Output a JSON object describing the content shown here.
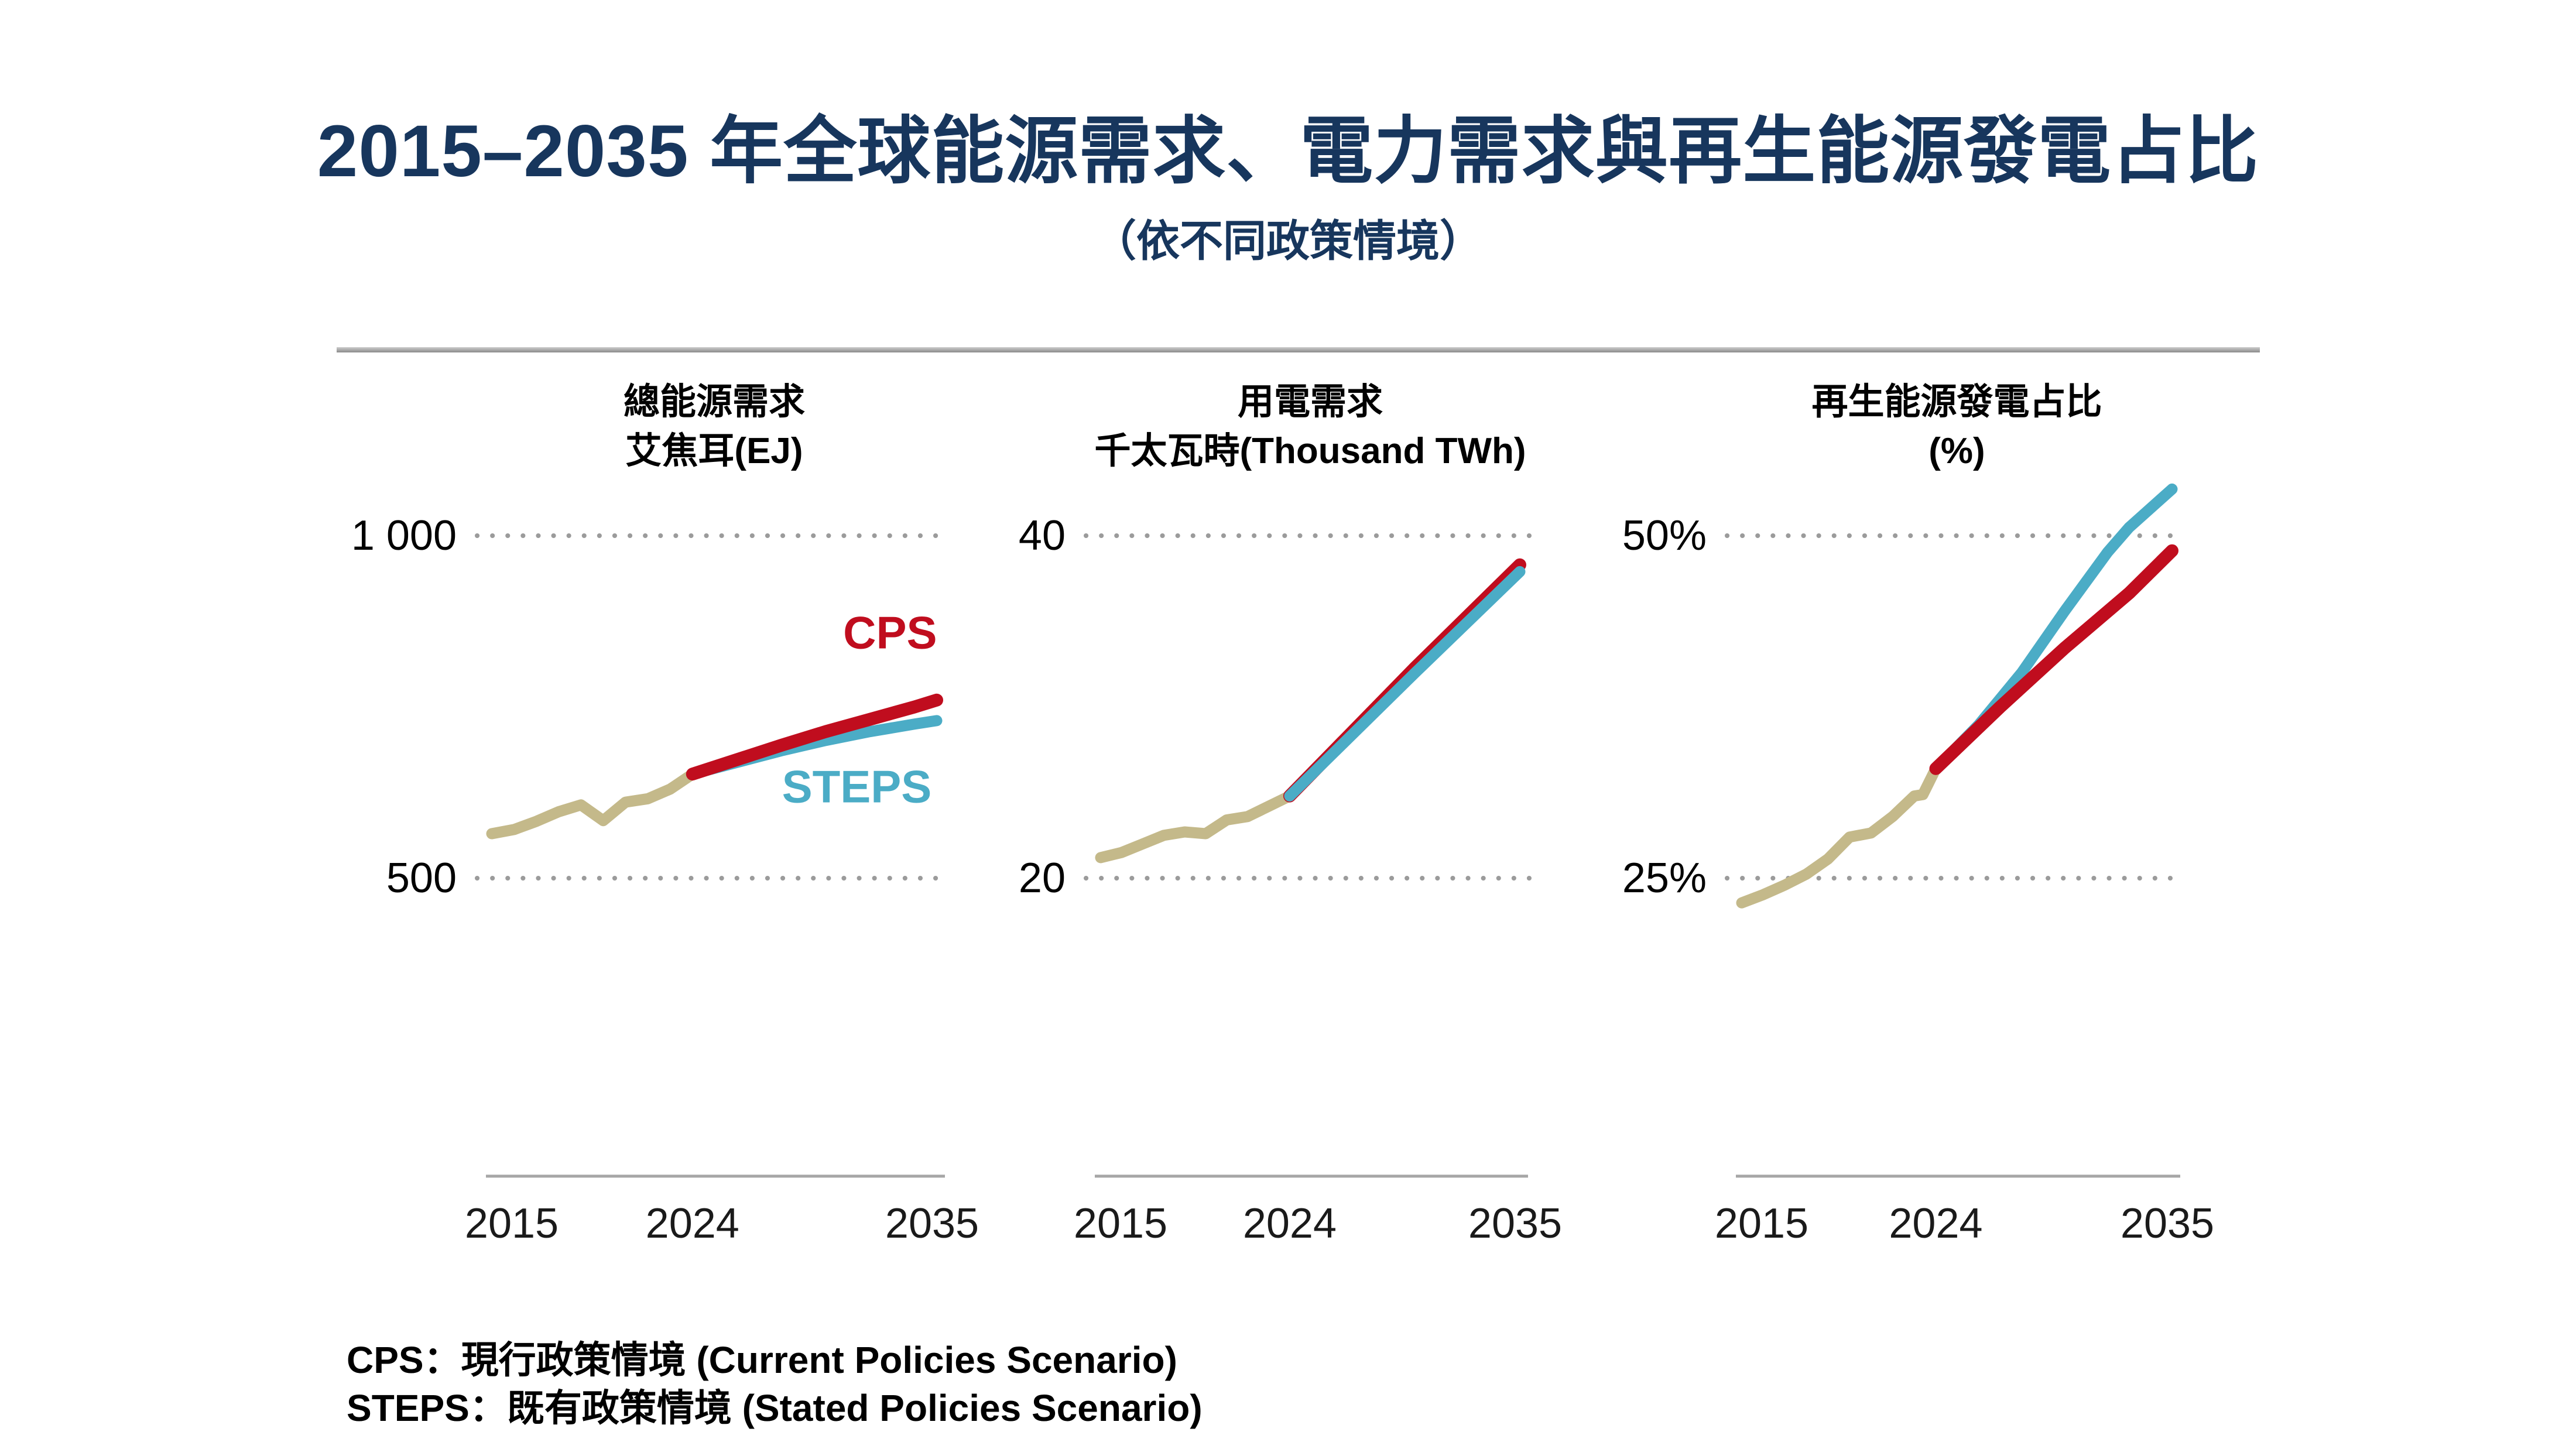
{
  "page": {
    "title": "2015–2035 年全球能源需求、電力需求與再生能源發電占比",
    "subtitle": "（依不同政策情境）"
  },
  "legend": {
    "line1": "CPS：現行政策情境 (Current Policies Scenario)",
    "line2": "STEPS：既有政策情境 (Stated Policies Scenario)"
  },
  "colors": {
    "navy": "#17365d",
    "red": "#c00d1e",
    "blue": "#4bacc6",
    "tan": "#c4b98a",
    "grid_dots": "#9b9b9b",
    "axis_line": "#a6a6a6",
    "text": "#000000"
  },
  "chart_data": [
    {
      "type": "line",
      "title_lines": [
        "總能源需求",
        "艾焦耳(EJ)"
      ],
      "x_ticks": [
        "2015",
        "2024",
        "2035"
      ],
      "x_range": [
        2015,
        2035
      ],
      "grid": "dotted-horizontal",
      "y_gridlines": [
        {
          "label": "1 000",
          "value": 1000
        },
        {
          "label": "500",
          "value": 500
        }
      ],
      "series": [
        {
          "name": "historical",
          "color": "tan",
          "points": [
            [
              2015,
              565
            ],
            [
              2016,
              571
            ],
            [
              2017,
              583
            ],
            [
              2018,
              597
            ],
            [
              2019,
              607
            ],
            [
              2020,
              584
            ],
            [
              2021,
              611
            ],
            [
              2022,
              616
            ],
            [
              2023,
              630
            ],
            [
              2024,
              652
            ]
          ]
        },
        {
          "name": "STEPS",
          "color": "blue",
          "points": [
            [
              2024,
              652
            ],
            [
              2026,
              669
            ],
            [
              2028,
              686
            ],
            [
              2030,
              701
            ],
            [
              2032,
              714
            ],
            [
              2034,
              725
            ],
            [
              2035,
              730
            ]
          ]
        },
        {
          "name": "CPS",
          "color": "red",
          "points": [
            [
              2024,
              652
            ],
            [
              2026,
              673
            ],
            [
              2028,
              694
            ],
            [
              2030,
              714
            ],
            [
              2032,
              732
            ],
            [
              2034,
              750
            ],
            [
              2035,
              760
            ]
          ]
        }
      ],
      "annotations": [
        {
          "text": "CPS",
          "color": "red",
          "year": 2032.9,
          "value": 858
        },
        {
          "text": "STEPS",
          "color": "blue",
          "year": 2031.4,
          "value": 633
        }
      ]
    },
    {
      "type": "line",
      "title_lines": [
        "用電需求",
        "千太瓦時(Thousand TWh)"
      ],
      "x_ticks": [
        "2015",
        "2024",
        "2035"
      ],
      "x_range": [
        2015,
        2035
      ],
      "grid": "dotted-horizontal",
      "y_gridlines": [
        {
          "label": "40",
          "value": 40
        },
        {
          "label": "20",
          "value": 20
        }
      ],
      "series": [
        {
          "name": "historical",
          "color": "tan",
          "points": [
            [
              2015,
              21.2
            ],
            [
              2016,
              21.5
            ],
            [
              2017,
              22.0
            ],
            [
              2018,
              22.5
            ],
            [
              2019,
              22.7
            ],
            [
              2020,
              22.6
            ],
            [
              2021,
              23.4
            ],
            [
              2022,
              23.6
            ],
            [
              2023,
              24.2
            ],
            [
              2024,
              24.8
            ]
          ]
        },
        {
          "name": "CPS",
          "color": "red",
          "points": [
            [
              2024,
              24.8
            ],
            [
              2030,
              32.3
            ],
            [
              2035,
              38.3
            ]
          ]
        },
        {
          "name": "STEPS",
          "color": "blue",
          "points": [
            [
              2024,
              24.8
            ],
            [
              2030,
              32.0
            ],
            [
              2035,
              37.9
            ]
          ]
        }
      ],
      "annotations": []
    },
    {
      "type": "line",
      "title_lines": [
        "再生能源發電占比",
        "(%)"
      ],
      "x_ticks": [
        "2015",
        "2024",
        "2035"
      ],
      "x_range": [
        2015,
        2035
      ],
      "grid": "dotted-horizontal",
      "y_gridlines": [
        {
          "label": "50%",
          "value": 50
        },
        {
          "label": "25%",
          "value": 25
        }
      ],
      "series": [
        {
          "name": "historical",
          "color": "tan",
          "points": [
            [
              2015,
              23.2
            ],
            [
              2016,
              23.8
            ],
            [
              2017,
              24.5
            ],
            [
              2018,
              25.3
            ],
            [
              2019,
              26.4
            ],
            [
              2020,
              28.0
            ],
            [
              2021,
              28.3
            ],
            [
              2022,
              29.5
            ],
            [
              2023,
              31.0
            ],
            [
              2023.4,
              31.1
            ],
            [
              2024,
              33.0
            ]
          ]
        },
        {
          "name": "STEPS",
          "color": "blue",
          "points": [
            [
              2024,
              33.0
            ],
            [
              2026,
              36.2
            ],
            [
              2028,
              40.0
            ],
            [
              2030,
              44.5
            ],
            [
              2032,
              48.8
            ],
            [
              2033,
              50.6
            ],
            [
              2035,
              53.4
            ]
          ]
        },
        {
          "name": "CPS",
          "color": "red",
          "points": [
            [
              2024,
              33.0
            ],
            [
              2027,
              37.5
            ],
            [
              2030,
              41.8
            ],
            [
              2033,
              45.8
            ],
            [
              2035,
              48.9
            ]
          ]
        }
      ],
      "annotations": []
    }
  ]
}
